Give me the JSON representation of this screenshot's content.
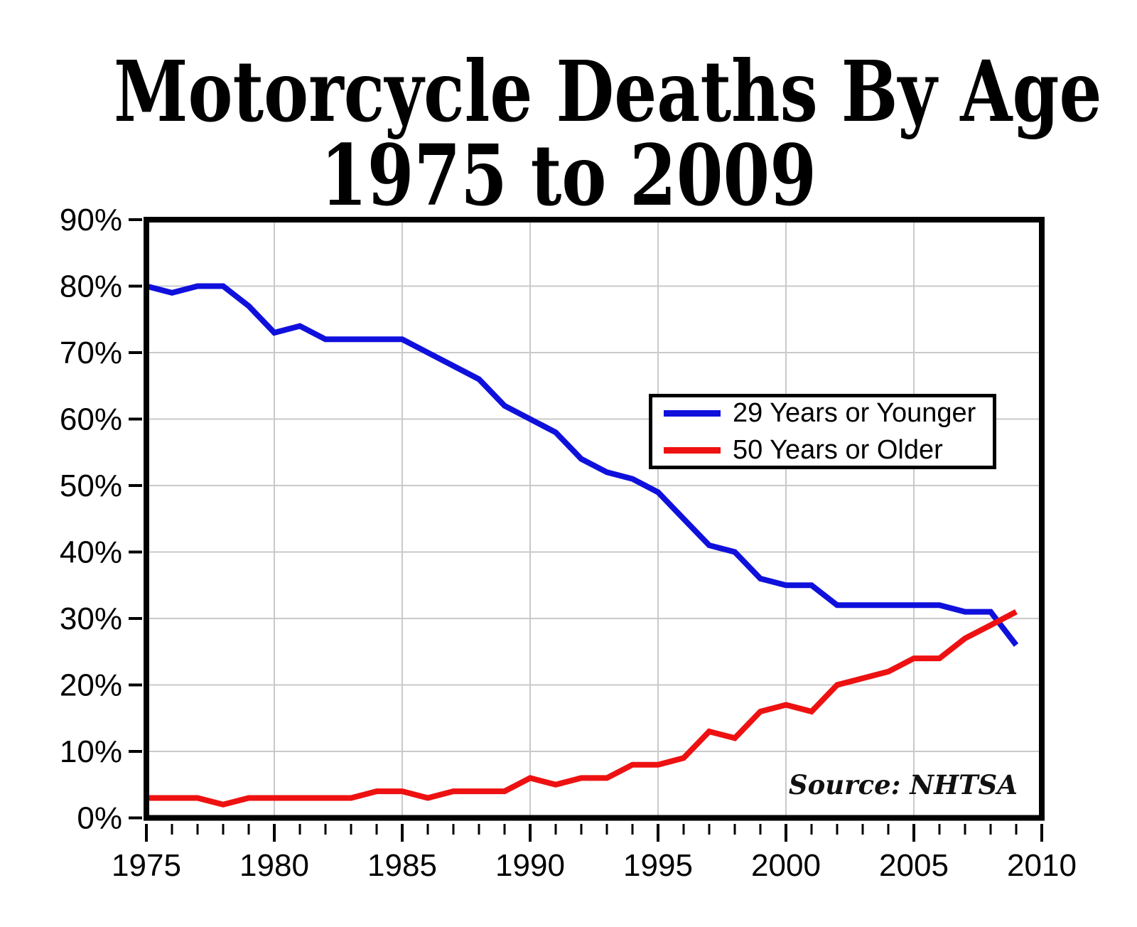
{
  "title": {
    "line1": "Motorcycle Deaths By Age",
    "line2": "1975 to 2009"
  },
  "source_note": "Source: NHTSA",
  "colors": {
    "series_young": "#1010dd",
    "series_old": "#ee1111",
    "grid": "#c9c9c9",
    "border": "#000000",
    "background": "#ffffff",
    "text": "#000000"
  },
  "legend": {
    "items": [
      {
        "label": "29 Years or Younger",
        "color": "#1010dd"
      },
      {
        "label": "50 Years or Older",
        "color": "#ee1111"
      }
    ]
  },
  "chart_data": {
    "type": "line",
    "title": "Motorcycle Deaths By Age 1975 to 2009",
    "xlabel": "",
    "ylabel": "",
    "x": [
      1975,
      1976,
      1977,
      1978,
      1979,
      1980,
      1981,
      1982,
      1983,
      1984,
      1985,
      1986,
      1987,
      1988,
      1989,
      1990,
      1991,
      1992,
      1993,
      1994,
      1995,
      1996,
      1997,
      1998,
      1999,
      2000,
      2001,
      2002,
      2003,
      2004,
      2005,
      2006,
      2007,
      2008,
      2009
    ],
    "series": [
      {
        "name": "29 Years or Younger",
        "color": "#1010dd",
        "values": [
          80,
          79,
          80,
          80,
          77,
          73,
          74,
          72,
          72,
          72,
          72,
          70,
          68,
          66,
          62,
          60,
          58,
          54,
          52,
          51,
          49,
          45,
          41,
          40,
          36,
          35,
          35,
          32,
          32,
          32,
          32,
          32,
          31,
          31,
          26
        ]
      },
      {
        "name": "50 Years or Older",
        "color": "#ee1111",
        "values": [
          3,
          3,
          3,
          2,
          3,
          3,
          3,
          3,
          3,
          4,
          4,
          3,
          4,
          4,
          4,
          6,
          5,
          6,
          6,
          8,
          8,
          9,
          13,
          12,
          16,
          17,
          16,
          20,
          21,
          22,
          24,
          24,
          27,
          29,
          31
        ]
      }
    ],
    "xlim": [
      1975,
      2010
    ],
    "ylim": [
      0,
      90
    ],
    "x_major_ticks": [
      1975,
      1980,
      1985,
      1990,
      1995,
      2000,
      2005,
      2010
    ],
    "y_ticks": [
      0,
      10,
      20,
      30,
      40,
      50,
      60,
      70,
      80,
      90
    ],
    "y_tick_suffix": "%",
    "grid": true,
    "legend_position": "center-right",
    "source": "NHTSA"
  }
}
